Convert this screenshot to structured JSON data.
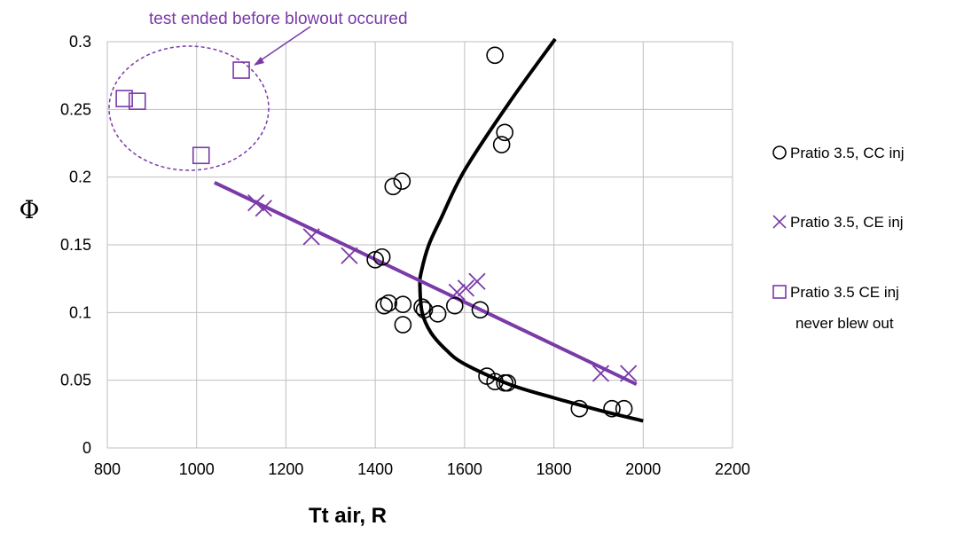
{
  "chart_data": {
    "type": "scatter",
    "title": "",
    "xlabel": "Tt air, R",
    "ylabel": "Φ",
    "xlim": [
      800,
      2200
    ],
    "ylim": [
      0,
      0.3
    ],
    "xticks": [
      "800",
      "1000",
      "1200",
      "1400",
      "1600",
      "1800",
      "2000",
      "2200"
    ],
    "yticks": [
      "0",
      "0.05",
      "0.1",
      "0.15",
      "0.2",
      "0.25",
      "0.3"
    ],
    "grid": true,
    "legend_position": "right",
    "annotation": "test ended before blowout occured",
    "colors": {
      "cc": "#000000",
      "ce": "#7a3aa8",
      "never": "#7a3aa8",
      "fit_cc": "#000000",
      "fit_ce": "#7a3aa8",
      "grid": "#bfbfbf"
    },
    "series": [
      {
        "name": "Pratio 3.5, CC inj",
        "marker": "circle",
        "points": [
          [
            1668,
            0.29
          ],
          [
            1690,
            0.233
          ],
          [
            1683,
            0.224
          ],
          [
            1440,
            0.193
          ],
          [
            1460,
            0.197
          ],
          [
            1400,
            0.139
          ],
          [
            1415,
            0.141
          ],
          [
            1420,
            0.105
          ],
          [
            1430,
            0.107
          ],
          [
            1462,
            0.106
          ],
          [
            1462,
            0.091
          ],
          [
            1505,
            0.104
          ],
          [
            1510,
            0.102
          ],
          [
            1540,
            0.099
          ],
          [
            1578,
            0.105
          ],
          [
            1635,
            0.102
          ],
          [
            1650,
            0.053
          ],
          [
            1668,
            0.049
          ],
          [
            1690,
            0.048
          ],
          [
            1696,
            0.048
          ],
          [
            1857,
            0.029
          ],
          [
            1930,
            0.029
          ],
          [
            1957,
            0.029
          ]
        ]
      },
      {
        "name": "Pratio 3.5, CE inj",
        "marker": "x",
        "points": [
          [
            1133,
            0.181
          ],
          [
            1150,
            0.177
          ],
          [
            1257,
            0.156
          ],
          [
            1342,
            0.142
          ],
          [
            1583,
            0.115
          ],
          [
            1603,
            0.118
          ],
          [
            1628,
            0.123
          ],
          [
            1905,
            0.055
          ],
          [
            1967,
            0.055
          ]
        ]
      },
      {
        "name": "Pratio 3.5 CE inj never blew out",
        "marker": "square",
        "points": [
          [
            838,
            0.258
          ],
          [
            867,
            0.256
          ],
          [
            1010,
            0.216
          ],
          [
            1100,
            0.279
          ]
        ]
      }
    ],
    "fits": [
      {
        "for": "Pratio 3.5, CC inj",
        "points": [
          [
            1803,
            0.302
          ],
          [
            1700,
            0.255
          ],
          [
            1600,
            0.205
          ],
          [
            1548,
            0.17
          ],
          [
            1520,
            0.15
          ],
          [
            1503,
            0.13
          ],
          [
            1500,
            0.12
          ],
          [
            1505,
            0.1
          ],
          [
            1525,
            0.085
          ],
          [
            1560,
            0.072
          ],
          [
            1600,
            0.062
          ],
          [
            1700,
            0.047
          ],
          [
            1800,
            0.037
          ],
          [
            1900,
            0.028
          ],
          [
            2000,
            0.02
          ]
        ]
      },
      {
        "for": "Pratio 3.5, CE inj",
        "points": [
          [
            1040,
            0.196
          ],
          [
            1985,
            0.047
          ]
        ]
      }
    ]
  }
}
